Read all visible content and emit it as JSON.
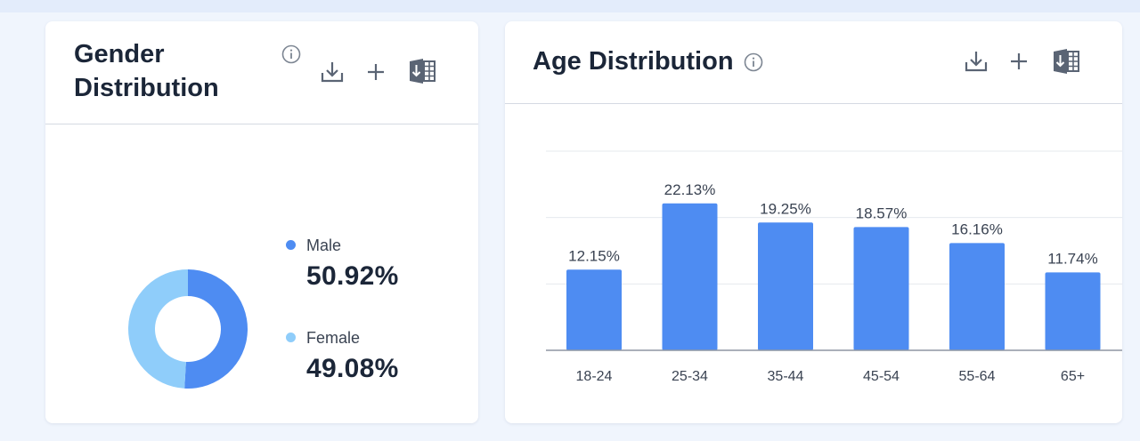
{
  "colors": {
    "male": "#4e8cf2",
    "female": "#8fcdfa",
    "bar": "#4e8cf2",
    "icon": "#5a6474"
  },
  "gender_card": {
    "title": "Gender Distribution",
    "icons": [
      "info-icon",
      "download-icon",
      "add-icon",
      "export-excel-icon"
    ],
    "legend": [
      {
        "label": "Male",
        "value": "50.92%"
      },
      {
        "label": "Female",
        "value": "49.08%"
      }
    ]
  },
  "age_card": {
    "title": "Age Distribution",
    "icons": [
      "info-icon",
      "download-icon",
      "add-icon",
      "export-excel-icon"
    ]
  },
  "chart_data": [
    {
      "type": "pie",
      "variant": "donut",
      "title": "Gender Distribution",
      "categories": [
        "Male",
        "Female"
      ],
      "values": [
        50.92,
        49.08
      ],
      "value_labels": [
        "50.92%",
        "49.08%"
      ],
      "colors": [
        "#4e8cf2",
        "#8fcdfa"
      ],
      "legend": "right"
    },
    {
      "type": "bar",
      "title": "Age Distribution",
      "categories": [
        "18-24",
        "25-34",
        "35-44",
        "45-54",
        "55-64",
        "65+"
      ],
      "values": [
        12.15,
        22.13,
        19.25,
        18.57,
        16.16,
        11.74
      ],
      "data_labels": [
        "12.15%",
        "22.13%",
        "19.25%",
        "18.57%",
        "16.16%",
        "11.74%"
      ],
      "xlabel": "",
      "ylabel": "",
      "ylim": [
        0,
        30
      ],
      "grid": true,
      "color": "#4e8cf2"
    }
  ]
}
